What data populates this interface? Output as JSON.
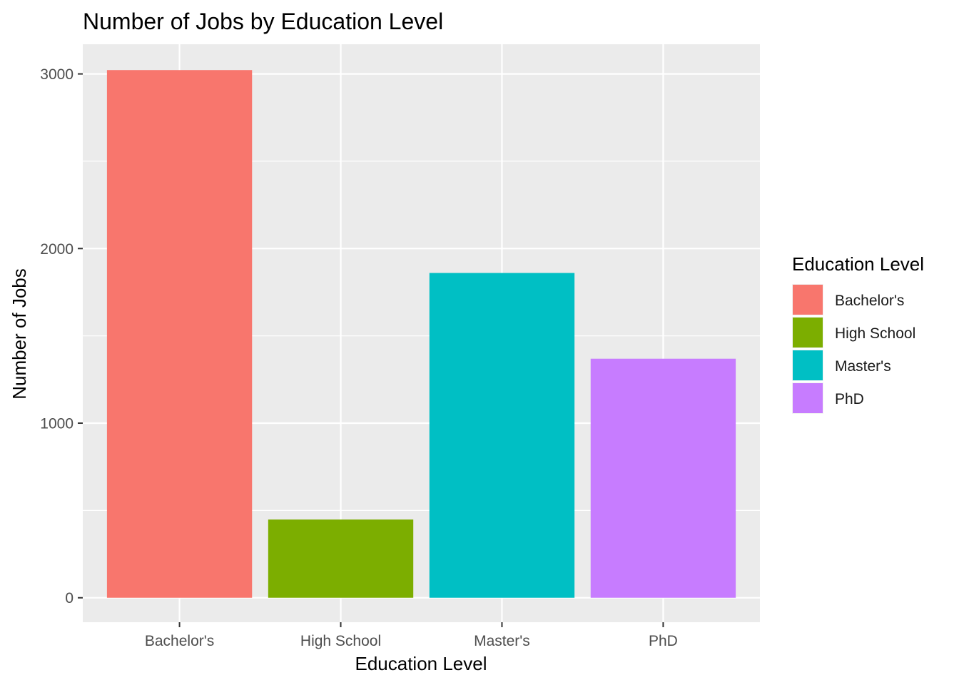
{
  "chart_data": {
    "type": "bar",
    "title": "Number of Jobs by Education Level",
    "xlabel": "Education Level",
    "ylabel": "Number of Jobs",
    "categories": [
      "Bachelor's",
      "High School",
      "Master's",
      "PhD"
    ],
    "values": [
      3022,
      448,
      1860,
      1369
    ],
    "colors": [
      "#F8766D",
      "#7CAE00",
      "#00BFC4",
      "#C77CFF"
    ],
    "ylim": [
      -140,
      3170
    ],
    "yticks": [
      0,
      1000,
      2000,
      3000
    ],
    "ytick_labels": [
      "0",
      "1000",
      "2000",
      "3000"
    ],
    "grid": true,
    "panel_background": "#EBEBEB",
    "legend": {
      "title": "Education Level",
      "position": "right",
      "entries": [
        "Bachelor's",
        "High School",
        "Master's",
        "PhD"
      ]
    }
  }
}
